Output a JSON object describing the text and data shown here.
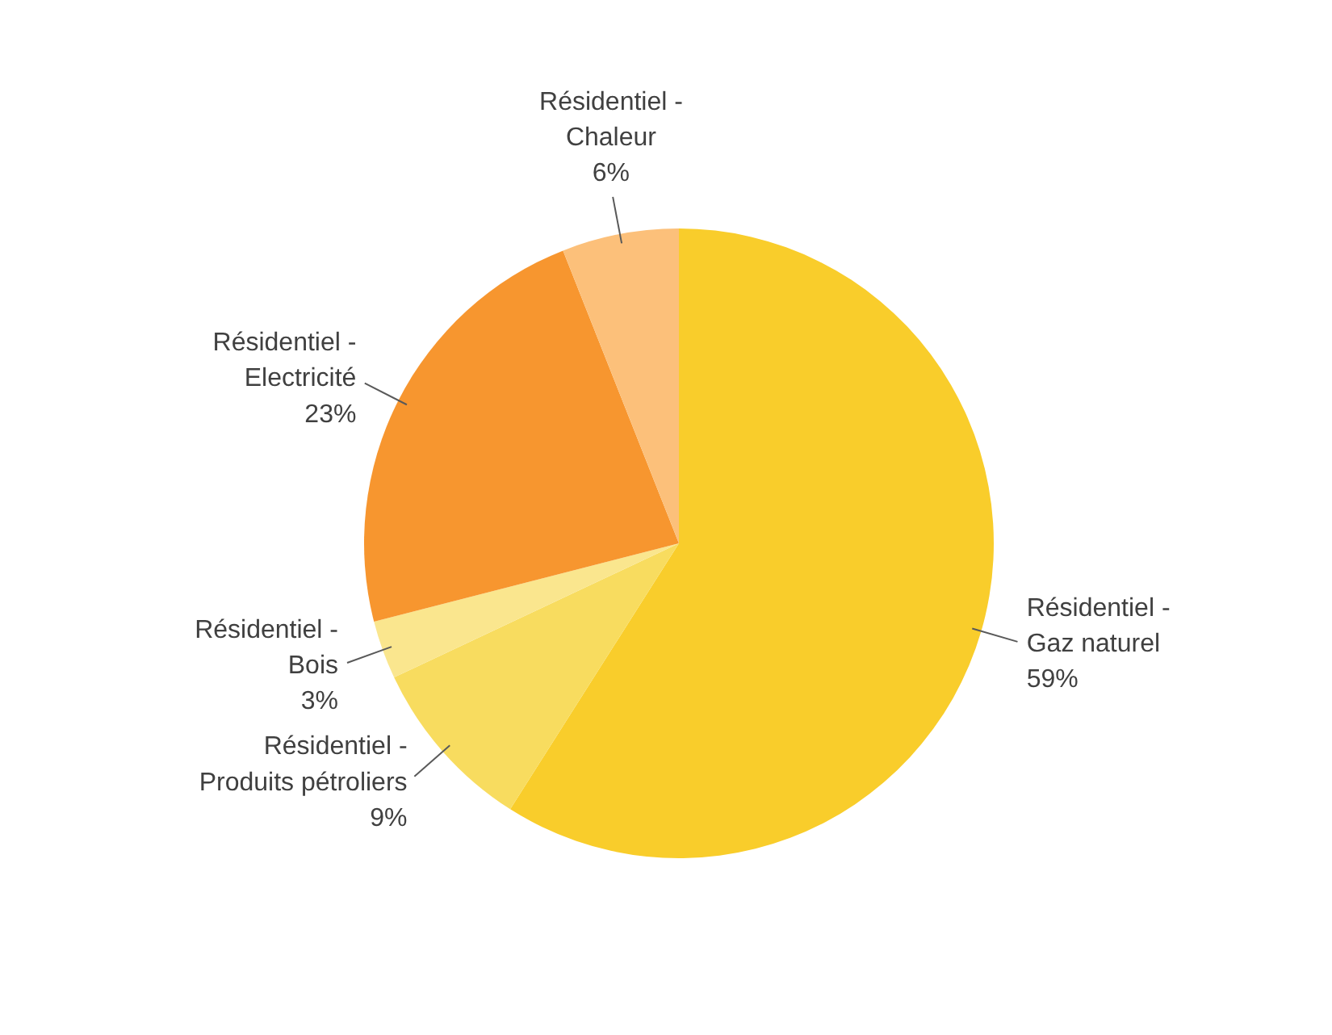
{
  "chart_data": {
    "type": "pie",
    "categories": [
      "Résidentiel -\nGaz naturel",
      "Résidentiel -\nProduits pétroliers",
      "Résidentiel -\nBois",
      "Résidentiel -\nElectricité",
      "Résidentiel -\nChaleur"
    ],
    "values": [
      59,
      9,
      3,
      23,
      6
    ],
    "colors": [
      "#f9cd2b",
      "#f8dc5f",
      "#fae68e",
      "#f7962f",
      "#fcc07a"
    ],
    "value_labels": [
      "59%",
      "9%",
      "3%",
      "23%",
      "6%"
    ]
  }
}
